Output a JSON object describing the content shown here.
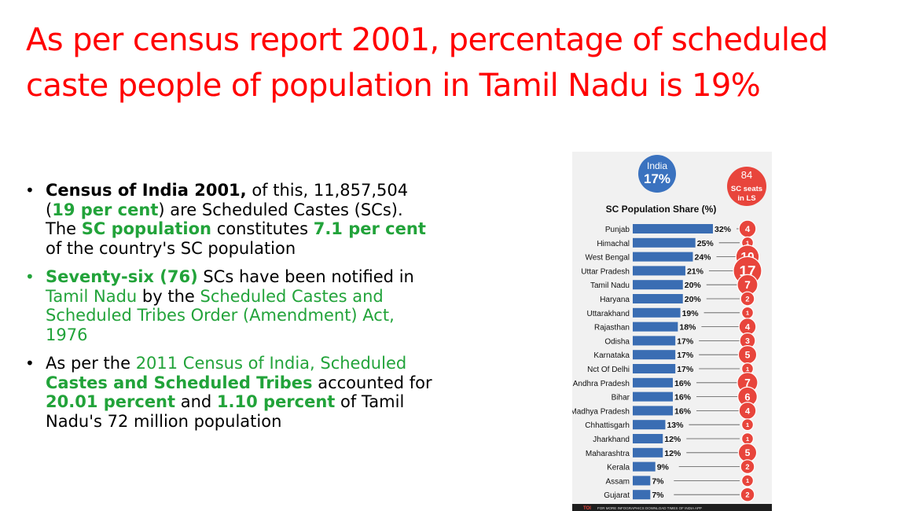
{
  "title": "As per census report 2001, percentage of scheduled caste people of population in Tamil Nadu is 19%",
  "bullets": [
    {
      "parts": [
        {
          "text": "Census of India 2001,",
          "style": "b"
        },
        {
          "text": " of this, 11,857,504 (",
          "style": ""
        },
        {
          "text": "19 per cent",
          "style": "gb"
        },
        {
          "text": ") are Scheduled Castes (SCs). The ",
          "style": ""
        },
        {
          "text": "SC population",
          "style": "gb"
        },
        {
          "text": " constitutes ",
          "style": ""
        },
        {
          "text": "7.1 per cent",
          "style": "gb"
        },
        {
          "text": " of the country's SC population",
          "style": ""
        }
      ]
    },
    {
      "parts": [
        {
          "text": "Seventy-six (76)",
          "style": "gb"
        },
        {
          "text": " SCs have been notified in ",
          "style": ""
        },
        {
          "text": "Tamil Nadu",
          "style": "g"
        },
        {
          "text": " by the ",
          "style": ""
        },
        {
          "text": "Scheduled Castes and Scheduled Tribes Order (Amendment) Act, 1976",
          "style": "g"
        }
      ]
    },
    {
      "parts": [
        {
          "text": "As per the ",
          "style": ""
        },
        {
          "text": "2011 Census of India, Scheduled ",
          "style": "g"
        },
        {
          "text": "Castes and Scheduled Tribes",
          "style": "gb"
        },
        {
          "text": " accounted for ",
          "style": ""
        },
        {
          "text": "20.01 percent",
          "style": "gb"
        },
        {
          "text": " and ",
          "style": ""
        },
        {
          "text": "1.10 percent",
          "style": "gb"
        },
        {
          "text": " of Tamil Nadu's 72 million population",
          "style": ""
        }
      ]
    }
  ],
  "infographic": {
    "india_label": "India",
    "india_value": "17%",
    "seats_number": "84",
    "seats_line1": "SC seats",
    "seats_line2": "in LS",
    "footer_logo": "TOI",
    "footer_text": "FOR MORE INFOGRAPHICS DOWNLOAD TIMES OF INDIA APP"
  },
  "chart_data": {
    "type": "bar",
    "orientation": "horizontal",
    "title": "SC Population Share (%)",
    "categories": [
      "Punjab",
      "Himachal",
      "West Bengal",
      "Uttar Pradesh",
      "Tamil Nadu",
      "Haryana",
      "Uttarakhand",
      "Rajasthan",
      "Odisha",
      "Karnataka",
      "Nct Of Delhi",
      "Andhra Pradesh",
      "Bihar",
      "Madhya Pradesh",
      "Chhattisgarh",
      "Jharkhand",
      "Maharashtra",
      "Kerala",
      "Assam",
      "Gujarat"
    ],
    "values": [
      32,
      25,
      24,
      21,
      20,
      20,
      19,
      18,
      17,
      17,
      17,
      16,
      16,
      16,
      13,
      12,
      12,
      9,
      7,
      7
    ],
    "value_labels": [
      "32%",
      "25%",
      "24%",
      "21%",
      "20%",
      "20%",
      "19%",
      "18%",
      "17%",
      "17%",
      "17%",
      "16%",
      "16%",
      "16%",
      "13%",
      "12%",
      "12%",
      "9%",
      "7%",
      "7%"
    ],
    "sc_seats_in_ls": [
      4,
      1,
      10,
      17,
      7,
      2,
      1,
      4,
      3,
      5,
      1,
      7,
      6,
      4,
      1,
      1,
      5,
      2,
      1,
      2
    ],
    "bar_color": "#3a6db3",
    "seat_color": "#e8453c",
    "india_bubble_color": "#3a72bf"
  }
}
